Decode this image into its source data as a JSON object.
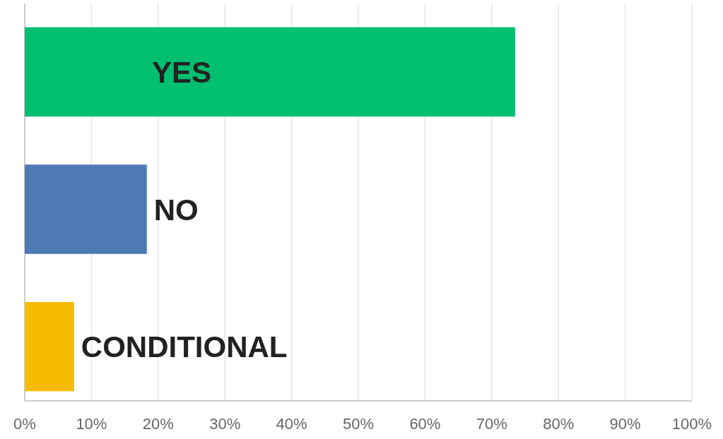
{
  "chart_data": {
    "type": "bar",
    "orientation": "horizontal",
    "categories": [
      "YES",
      "NO",
      "CONDITIONAL"
    ],
    "values": [
      73.5,
      18.3,
      7.4
    ],
    "colors": [
      "#00bf6f",
      "#4d7ab5",
      "#f7bc00"
    ],
    "xlim": [
      0,
      100
    ],
    "xticks": [
      {
        "value": 0,
        "label": "0%"
      },
      {
        "value": 10,
        "label": "10%"
      },
      {
        "value": 20,
        "label": "20%"
      },
      {
        "value": 30,
        "label": "30%"
      },
      {
        "value": 40,
        "label": "40%"
      },
      {
        "value": 50,
        "label": "50%"
      },
      {
        "value": 60,
        "label": "60%"
      },
      {
        "value": 70,
        "label": "70%"
      },
      {
        "value": 80,
        "label": "80%"
      },
      {
        "value": 90,
        "label": "90%"
      },
      {
        "value": 100,
        "label": "100%"
      }
    ],
    "grid": "x"
  }
}
